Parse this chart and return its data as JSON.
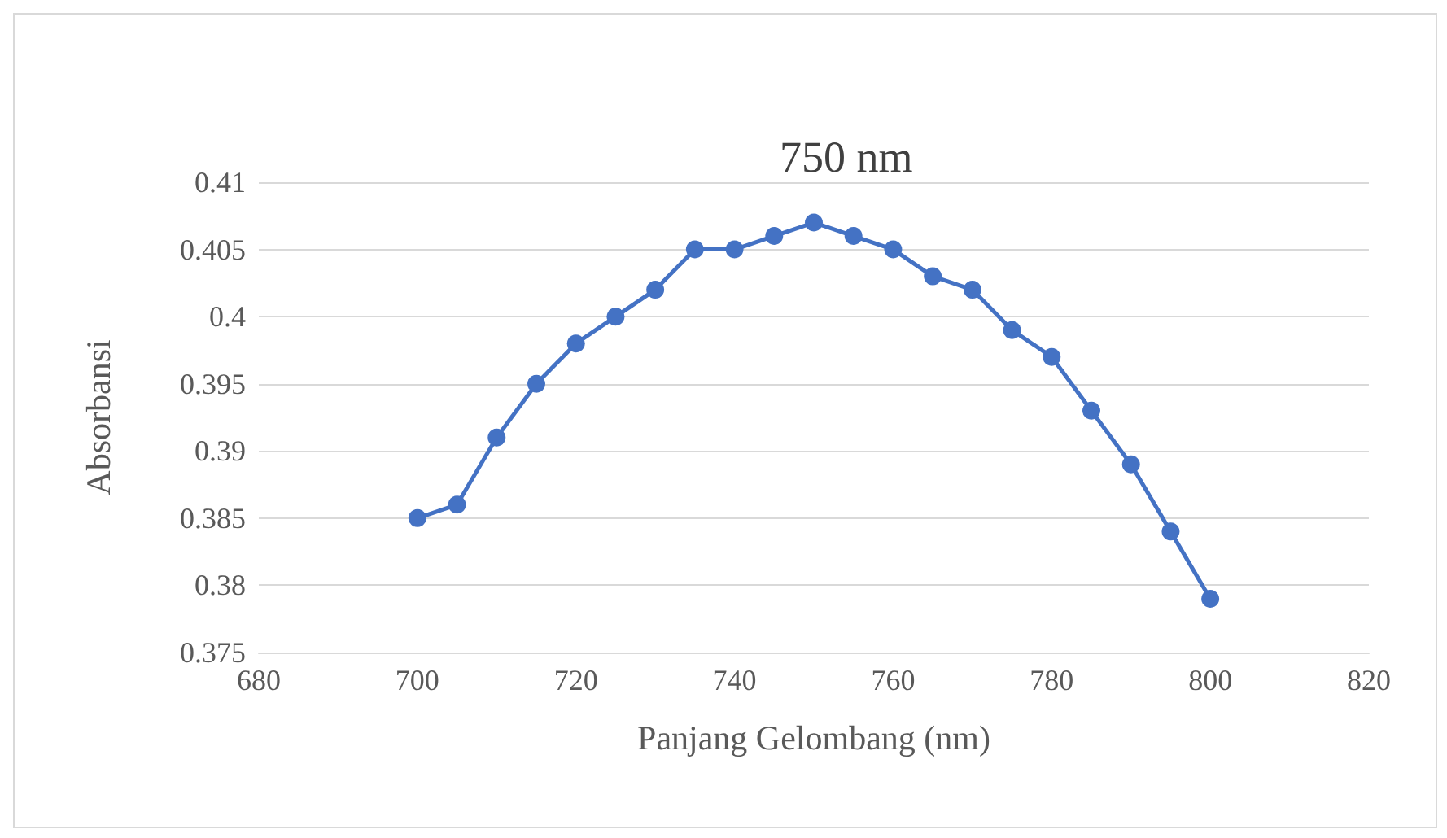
{
  "chart_data": {
    "type": "line",
    "xlabel": "Panjang Gelombang (nm)",
    "ylabel": "Absorbansi",
    "x": [
      700,
      705,
      710,
      715,
      720,
      725,
      730,
      735,
      740,
      745,
      750,
      755,
      760,
      765,
      770,
      775,
      780,
      785,
      790,
      795,
      800
    ],
    "series": [
      {
        "color": "#4472c4",
        "values": [
          0.385,
          0.386,
          0.391,
          0.395,
          0.398,
          0.4,
          0.402,
          0.405,
          0.405,
          0.406,
          0.407,
          0.406,
          0.405,
          0.403,
          0.402,
          0.399,
          0.397,
          0.393,
          0.389,
          0.384,
          0.379
        ]
      }
    ],
    "xlim": [
      680,
      820
    ],
    "xticks": [
      680,
      700,
      720,
      740,
      760,
      780,
      800,
      820
    ],
    "ylim": [
      0.375,
      0.41
    ],
    "yticks": [
      0.375,
      0.38,
      0.385,
      0.39,
      0.395,
      0.4,
      0.405,
      0.41
    ],
    "grid": "y",
    "marker": "circle",
    "line_style": "solid",
    "annotations": [
      "750 nm"
    ]
  }
}
